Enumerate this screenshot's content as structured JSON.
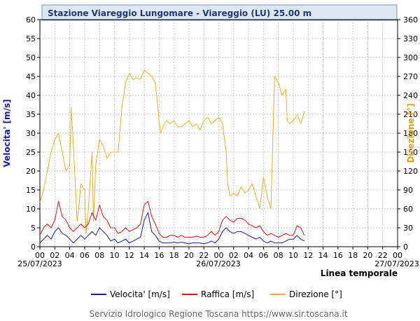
{
  "chart_data": {
    "type": "line",
    "title": "Stazione Viareggio Lungomare - Viareggio (LU) 25.00 m",
    "xlabel": "Linea temporale",
    "ylabel_left": "Velocita' [m/s]",
    "ylabel_right": "Direzione [°]",
    "ylim_left": [
      0,
      60
    ],
    "ylim_right": [
      0,
      360
    ],
    "yticks_left": [
      0,
      5,
      10,
      15,
      20,
      25,
      30,
      35,
      40,
      45,
      50,
      55,
      60
    ],
    "yticks_right": [
      0,
      30,
      60,
      90,
      120,
      150,
      180,
      210,
      240,
      270,
      300,
      330,
      360
    ],
    "x_hours_range": [
      0,
      48
    ],
    "x_tick_labels": [
      "00",
      "02",
      "04",
      "06",
      "08",
      "10",
      "12",
      "14",
      "16",
      "18",
      "20",
      "22",
      "00",
      "02",
      "04",
      "06",
      "08",
      "10",
      "12",
      "14",
      "16",
      "18",
      "20",
      "22",
      "00"
    ],
    "date_labels": [
      "25/07/2023",
      "26/07/2023",
      "27/07/2023"
    ],
    "grid": true,
    "series": [
      {
        "name": "Velocita' [m/s]",
        "color": "#1a1aa8",
        "x": [
          0,
          0.5,
          1,
          1.5,
          2,
          2.5,
          3,
          3.5,
          4,
          4.5,
          5,
          5.5,
          6,
          6.5,
          7,
          7.5,
          8,
          8.5,
          9,
          9.5,
          10,
          10.5,
          11,
          11.5,
          12,
          12.5,
          13,
          13.5,
          14,
          14.5,
          15,
          15.5,
          16,
          16.5,
          17,
          17.5,
          18,
          18.5,
          19,
          19.5,
          20,
          20.5,
          21,
          21.5,
          22,
          22.5,
          23,
          23.5,
          24,
          24.5,
          25,
          25.5,
          26,
          26.5,
          27,
          27.5,
          28,
          28.5,
          29,
          29.5,
          30,
          30.5,
          31,
          31.5,
          32,
          32.5,
          33,
          33.5,
          34,
          34.5,
          35,
          35.5
        ],
        "values": [
          1,
          2,
          3,
          2,
          4,
          5,
          3.5,
          3,
          2,
          1,
          2,
          3,
          2,
          3,
          4,
          3,
          5,
          4,
          3,
          1.5,
          2,
          1,
          1.5,
          2,
          1,
          1.5,
          2,
          2.5,
          7,
          9,
          4,
          3,
          1.5,
          1,
          1,
          1,
          1.2,
          1,
          1.2,
          1,
          0.8,
          1,
          1,
          1,
          0.8,
          1,
          1.5,
          1,
          2,
          4,
          5,
          4,
          3.5,
          4,
          4,
          3.5,
          3,
          2.5,
          2,
          2.5,
          1.5,
          1,
          1.5,
          1,
          1,
          1,
          1.5,
          2,
          2,
          3,
          2,
          1.5
        ]
      },
      {
        "name": "Raffica [m/s]",
        "color": "#e01414",
        "x": [
          0,
          0.5,
          1,
          1.5,
          2,
          2.5,
          3,
          3.5,
          4,
          4.5,
          5,
          5.5,
          6,
          6.5,
          7,
          7.5,
          8,
          8.5,
          9,
          9.5,
          10,
          10.5,
          11,
          11.5,
          12,
          12.5,
          13,
          13.5,
          14,
          14.5,
          15,
          15.5,
          16,
          16.5,
          17,
          17.5,
          18,
          18.5,
          19,
          19.5,
          20,
          20.5,
          21,
          21.5,
          22,
          22.5,
          23,
          23.5,
          24,
          24.5,
          25,
          25.5,
          26,
          26.5,
          27,
          27.5,
          28,
          28.5,
          29,
          29.5,
          30,
          30.5,
          31,
          31.5,
          32,
          32.5,
          33,
          33.5,
          34,
          34.5,
          35,
          35.5
        ],
        "values": [
          3,
          5,
          6,
          5,
          7,
          12,
          8,
          7,
          5,
          4,
          5,
          6,
          5,
          6,
          9,
          7,
          11,
          8,
          7,
          5,
          5,
          3.5,
          4,
          5,
          4,
          4.5,
          5,
          6,
          11,
          12,
          8,
          6,
          3.5,
          2.5,
          2.5,
          3,
          3,
          2.5,
          3,
          2.5,
          2.5,
          2.5,
          2.8,
          2.5,
          2.5,
          3,
          4,
          3,
          4,
          7,
          8,
          7,
          6.5,
          7.5,
          7.5,
          7,
          6,
          5.5,
          5,
          5.5,
          4,
          3,
          3.5,
          3,
          2.5,
          3,
          3.5,
          3,
          3,
          5.5,
          5,
          3
        ]
      },
      {
        "name": "Direzione [°]",
        "color": "#f0b020",
        "x": [
          0,
          0.5,
          1,
          1.5,
          2,
          2.5,
          3,
          3.5,
          4,
          4.2,
          4.5,
          5,
          5.2,
          5.5,
          6,
          6.2,
          6.5,
          7,
          7.2,
          7.5,
          8,
          8.5,
          9,
          9.5,
          10,
          10.5,
          11,
          11.5,
          12,
          12.5,
          13,
          13.5,
          14,
          14.5,
          15,
          15.5,
          16,
          16.2,
          16.5,
          17,
          17.5,
          18,
          18.5,
          19,
          19.5,
          20,
          20.5,
          21,
          21.5,
          22,
          22.5,
          23,
          23.5,
          24,
          24.5,
          25,
          25.2,
          25.5,
          26,
          26.5,
          27,
          27.5,
          28,
          28.5,
          29,
          29.5,
          30,
          30.5,
          31,
          31.5,
          32,
          32.5,
          33,
          33.2,
          33.5,
          34,
          34.5,
          35,
          35.5
        ],
        "values": [
          70,
          90,
          120,
          150,
          170,
          180,
          150,
          120,
          130,
          220,
          160,
          40,
          60,
          100,
          90,
          20,
          60,
          150,
          40,
          130,
          170,
          160,
          140,
          150,
          150,
          150,
          220,
          260,
          275,
          265,
          268,
          265,
          280,
          275,
          270,
          260,
          200,
          180,
          190,
          200,
          195,
          200,
          190,
          190,
          195,
          200,
          190,
          195,
          185,
          200,
          205,
          195,
          200,
          205,
          195,
          150,
          100,
          80,
          85,
          80,
          95,
          85,
          90,
          100,
          80,
          60,
          110,
          80,
          60,
          270,
          260,
          240,
          250,
          200,
          195,
          200,
          210,
          195,
          215
        ]
      }
    ],
    "legend": [
      "Velocita' [m/s]",
      "Raffica [m/s]",
      "Direzione [°]"
    ],
    "footer": "Servizio Idrologico Regione Toscana https://www.sir.toscana.it"
  }
}
